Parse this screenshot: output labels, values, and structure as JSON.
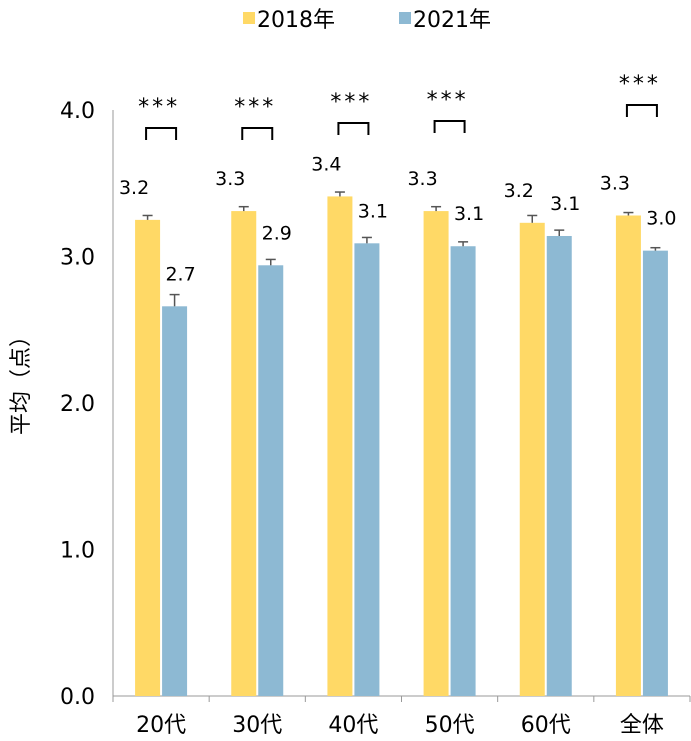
{
  "chart_data": {
    "type": "bar",
    "categories": [
      "20代",
      "30代",
      "40代",
      "50代",
      "60代",
      "全体"
    ],
    "series": [
      {
        "name": "2018年",
        "values": [
          3.25,
          3.31,
          3.41,
          3.31,
          3.23,
          3.28
        ],
        "error": [
          0.03,
          0.03,
          0.03,
          0.03,
          0.05,
          0.02
        ],
        "labels": [
          "3.2",
          "3.3",
          "3.4",
          "3.3",
          "3.2",
          "3.3"
        ],
        "color": "#FFD966"
      },
      {
        "name": "2021年",
        "values": [
          2.66,
          2.94,
          3.09,
          3.07,
          3.14,
          3.04
        ],
        "error": [
          0.08,
          0.04,
          0.04,
          0.03,
          0.04,
          0.02
        ],
        "labels": [
          "2.7",
          "2.9",
          "3.1",
          "3.1",
          "3.1",
          "3.0"
        ],
        "color": "#8DB9D3"
      }
    ],
    "title": "",
    "xlabel": "",
    "ylabel": "平均（点）",
    "ylim": [
      0,
      4
    ],
    "yticks": [
      "0.0",
      "1.0",
      "2.0",
      "3.0",
      "4.0"
    ],
    "grid": false,
    "legend": "top-center",
    "significance": [
      "***",
      "***",
      "***",
      "***",
      "",
      "***"
    ]
  }
}
